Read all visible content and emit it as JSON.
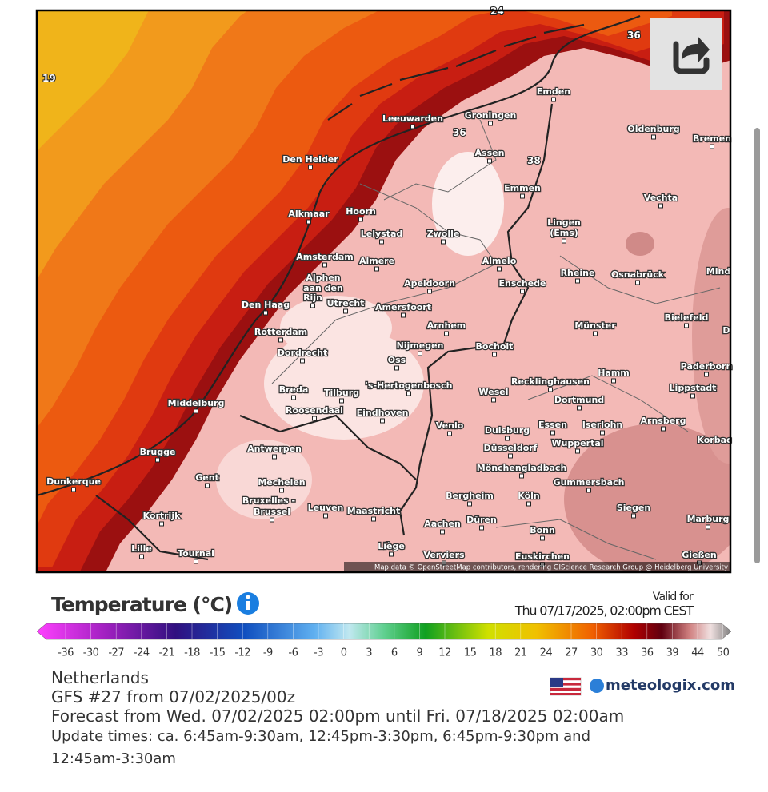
{
  "map": {
    "isotherm_labels": [
      19,
      24,
      36,
      38,
      36
    ],
    "cities": [
      "Emden",
      "Leeuwarden",
      "Groningen",
      "Oldenburg",
      "Bremen",
      "Den Helder",
      "Assen",
      "Emmen",
      "Vechta",
      "Alkmaar",
      "Hoorn",
      "Lelystad",
      "Zwolle",
      "Lingen",
      "(Ems)",
      "Amsterdam",
      "Almere",
      "Almelo",
      "Osnabrück",
      "Mind",
      "Rheine",
      "Alphen",
      "aan den",
      "Rijn",
      "Apeldoorn",
      "Enschede",
      "Den Haag",
      "Utrecht",
      "Amersfoort",
      "Bielefeld",
      "Rotterdam",
      "Arnhem",
      "Münster",
      "D",
      "Dordrecht",
      "Nijmegen",
      "Bocholt",
      "Oss",
      "Paderborn",
      "Hamm",
      "Recklinghausen",
      "'s-Hertogenbosch",
      "Lippstadt",
      "Breda",
      "Tilburg",
      "Wesel",
      "Dortmund",
      "Middelburg",
      "Roosendaal",
      "Eindhoven",
      "Arnsberg",
      "Venlo",
      "Essen",
      "Iserlohn",
      "Duisburg",
      "Korbac",
      "Wuppertal",
      "Antwerpen",
      "Düsseldorf",
      "Brugge",
      "Mönchengladbach",
      "Dunkerque",
      "Gent",
      "Gummersbach",
      "Mechelen",
      "Bergheim",
      "Köln",
      "Bruxelles -",
      "Brussel",
      "Leuven",
      "Maastricht",
      "Siegen",
      "Kortrijk",
      "Marburg",
      "Aachen",
      "Düren",
      "Bonn",
      "Liège",
      "Lille",
      "Tournai",
      "Verviers",
      "Euskirchen",
      "Gießen"
    ],
    "attribution": "Map data © OpenStreetMap contributors, rendering GIScience Research Group @ Heidelberg University"
  },
  "legend": {
    "title": "Temperature (°C)",
    "valid_for": "Valid for",
    "valid_time": "Thu 07/17/2025, 02:00pm CEST",
    "scale_ticks": [
      -36,
      -30,
      -27,
      -24,
      -21,
      -18,
      -15,
      -12,
      -9,
      -6,
      -3,
      0,
      3,
      6,
      9,
      12,
      15,
      18,
      21,
      24,
      27,
      30,
      33,
      36,
      39,
      44,
      50
    ]
  },
  "info": {
    "region": "Netherlands",
    "model": "GFS #27 from 07/02/2025/00z",
    "forecast": "Forecast from Wed. 07/02/2025 02:00pm until Fri. 07/18/2025 02:00am",
    "update_times": "Update times: ca. 6:45am-9:30am, 12:45pm-3:30pm, 6:45pm-9:30pm and 12:45am-3:30am"
  },
  "brand": "meteologix.com"
}
